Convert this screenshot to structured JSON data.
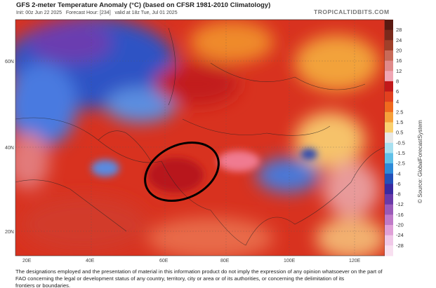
{
  "header": {
    "title": "GFS 2-meter Temperature Anomaly (°C) (based on CFSR 1981-2010 Climatology)",
    "subtitle": "Init: 00z Jun 22 2025   Forecast Hour: [234]   valid at 18z Tue, Jul 01 2025",
    "site": "TROPICALTIDBITS.COM"
  },
  "map": {
    "lat_labels": [
      "60N",
      "40N",
      "20N"
    ],
    "lon_labels": [
      "20E",
      "40E",
      "60E",
      "80E",
      "100E",
      "120E"
    ]
  },
  "colorbar": {
    "labels": [
      "28",
      "24",
      "20",
      "16",
      "12",
      "8",
      "6",
      "4",
      "2.5",
      "1.5",
      "0.5",
      "-0.5",
      "-1.5",
      "-2.5",
      "-4",
      "-6",
      "-8",
      "-12",
      "-16",
      "-20",
      "-24",
      "-28"
    ]
  },
  "source": "© Source: GlobalForecastSystem",
  "disclaimer": [
    "The designations employed and the presentation of material in this information product do not imply the expression of any opinion whatsoever on the part of",
    "FAO concerning the legal or development status of any country, territory, city or area or of its authorities, or concerning the delimitation of its",
    "frontiers or boundaries."
  ]
}
